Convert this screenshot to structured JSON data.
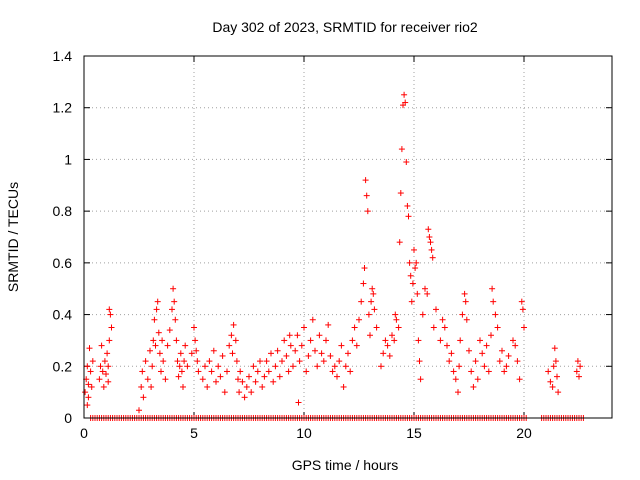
{
  "chart_data": {
    "type": "scatter",
    "title": "Day 302 of 2023, SRMTID for receiver rio2",
    "xlabel": "GPS time / hours",
    "ylabel": "SRMTID / TECUs",
    "xlim": [
      0,
      24
    ],
    "ylim": [
      0,
      1.4
    ],
    "xticks": [
      0,
      5,
      10,
      15,
      20
    ],
    "yticks": [
      0,
      0.2,
      0.4,
      0.6,
      0.8,
      1,
      1.2,
      1.4
    ],
    "xtick_labels": [
      "0",
      "5",
      "10",
      "15",
      "20"
    ],
    "ytick_labels": [
      "0",
      "0.2",
      "0.4",
      "0.6",
      "0.8",
      "1",
      "1.2",
      "1.4"
    ],
    "grid": true,
    "marker": "+",
    "color": "#ff0000",
    "series": [
      {
        "name": "rio2",
        "points": [
          [
            0.05,
            0.1
          ],
          [
            0.1,
            0.15
          ],
          [
            0.15,
            0.2
          ],
          [
            0.2,
            0.13
          ],
          [
            0.25,
            0.27
          ],
          [
            0.3,
            0.18
          ],
          [
            0.35,
            0.12
          ],
          [
            0.4,
            0.22
          ],
          [
            0.15,
            0.05
          ],
          [
            0.2,
            0.08
          ],
          [
            0.7,
            0.15
          ],
          [
            0.75,
            0.2
          ],
          [
            0.8,
            0.28
          ],
          [
            0.85,
            0.18
          ],
          [
            0.9,
            0.12
          ],
          [
            0.95,
            0.22
          ],
          [
            1.0,
            0.17
          ],
          [
            1.05,
            0.25
          ],
          [
            1.1,
            0.14
          ],
          [
            1.15,
            0.3
          ],
          [
            1.15,
            0.42
          ],
          [
            1.2,
            0.4
          ],
          [
            1.25,
            0.35
          ],
          [
            1.1,
            0.2
          ],
          [
            2.5,
            0.03
          ],
          [
            2.6,
            0.12
          ],
          [
            2.65,
            0.18
          ],
          [
            2.7,
            0.08
          ],
          [
            2.8,
            0.22
          ],
          [
            2.9,
            0.15
          ],
          [
            3.0,
            0.26
          ],
          [
            3.05,
            0.12
          ],
          [
            3.1,
            0.2
          ],
          [
            3.15,
            0.3
          ],
          [
            3.2,
            0.38
          ],
          [
            3.25,
            0.28
          ],
          [
            3.3,
            0.42
          ],
          [
            3.35,
            0.45
          ],
          [
            3.4,
            0.33
          ],
          [
            3.45,
            0.25
          ],
          [
            3.5,
            0.18
          ],
          [
            3.55,
            0.3
          ],
          [
            3.6,
            0.22
          ],
          [
            3.7,
            0.15
          ],
          [
            3.8,
            0.28
          ],
          [
            3.9,
            0.34
          ],
          [
            4.0,
            0.42
          ],
          [
            4.05,
            0.5
          ],
          [
            4.1,
            0.45
          ],
          [
            4.15,
            0.38
          ],
          [
            4.2,
            0.3
          ],
          [
            4.25,
            0.22
          ],
          [
            4.3,
            0.16
          ],
          [
            4.35,
            0.2
          ],
          [
            4.4,
            0.25
          ],
          [
            4.45,
            0.18
          ],
          [
            4.5,
            0.12
          ],
          [
            4.55,
            0.22
          ],
          [
            4.6,
            0.28
          ],
          [
            4.7,
            0.2
          ],
          [
            4.9,
            0.25
          ],
          [
            5.0,
            0.35
          ],
          [
            5.05,
            0.3
          ],
          [
            5.1,
            0.26
          ],
          [
            5.15,
            0.22
          ],
          [
            5.2,
            0.18
          ],
          [
            5.4,
            0.15
          ],
          [
            5.5,
            0.2
          ],
          [
            5.6,
            0.12
          ],
          [
            5.7,
            0.22
          ],
          [
            5.8,
            0.18
          ],
          [
            5.9,
            0.26
          ],
          [
            6.0,
            0.14
          ],
          [
            6.1,
            0.2
          ],
          [
            6.2,
            0.16
          ],
          [
            6.3,
            0.24
          ],
          [
            6.4,
            0.1
          ],
          [
            6.5,
            0.18
          ],
          [
            6.6,
            0.28
          ],
          [
            6.7,
            0.32
          ],
          [
            6.75,
            0.25
          ],
          [
            6.8,
            0.36
          ],
          [
            6.9,
            0.3
          ],
          [
            6.95,
            0.22
          ],
          [
            7.0,
            0.15
          ],
          [
            7.05,
            0.1
          ],
          [
            7.1,
            0.18
          ],
          [
            7.2,
            0.14
          ],
          [
            7.3,
            0.08
          ],
          [
            7.4,
            0.12
          ],
          [
            7.5,
            0.16
          ],
          [
            7.6,
            0.1
          ],
          [
            7.7,
            0.2
          ],
          [
            7.8,
            0.14
          ],
          [
            7.9,
            0.18
          ],
          [
            8.0,
            0.22
          ],
          [
            8.1,
            0.12
          ],
          [
            8.2,
            0.16
          ],
          [
            8.3,
            0.22
          ],
          [
            8.4,
            0.18
          ],
          [
            8.5,
            0.25
          ],
          [
            8.6,
            0.14
          ],
          [
            8.7,
            0.2
          ],
          [
            8.8,
            0.26
          ],
          [
            8.9,
            0.16
          ],
          [
            9.0,
            0.22
          ],
          [
            9.1,
            0.3
          ],
          [
            9.2,
            0.24
          ],
          [
            9.3,
            0.18
          ],
          [
            9.35,
            0.32
          ],
          [
            9.4,
            0.28
          ],
          [
            9.5,
            0.2
          ],
          [
            9.6,
            0.26
          ],
          [
            9.7,
            0.32
          ],
          [
            9.75,
            0.06
          ],
          [
            9.8,
            0.22
          ],
          [
            9.9,
            0.28
          ],
          [
            10.0,
            0.35
          ],
          [
            10.1,
            0.18
          ],
          [
            10.2,
            0.24
          ],
          [
            10.3,
            0.3
          ],
          [
            10.4,
            0.38
          ],
          [
            10.5,
            0.26
          ],
          [
            10.6,
            0.2
          ],
          [
            10.7,
            0.32
          ],
          [
            10.8,
            0.25
          ],
          [
            10.9,
            0.22
          ],
          [
            11.0,
            0.3
          ],
          [
            11.1,
            0.36
          ],
          [
            11.2,
            0.24
          ],
          [
            11.3,
            0.18
          ],
          [
            11.4,
            0.2
          ],
          [
            11.5,
            0.16
          ],
          [
            11.6,
            0.22
          ],
          [
            11.7,
            0.28
          ],
          [
            11.8,
            0.12
          ],
          [
            11.9,
            0.2
          ],
          [
            12.0,
            0.25
          ],
          [
            12.1,
            0.18
          ],
          [
            12.2,
            0.3
          ],
          [
            12.3,
            0.35
          ],
          [
            12.4,
            0.28
          ],
          [
            12.5,
            0.38
          ],
          [
            12.6,
            0.45
          ],
          [
            12.7,
            0.52
          ],
          [
            12.75,
            0.58
          ],
          [
            12.8,
            0.92
          ],
          [
            12.85,
            0.86
          ],
          [
            12.9,
            0.8
          ],
          [
            12.95,
            0.4
          ],
          [
            13.0,
            0.32
          ],
          [
            13.05,
            0.45
          ],
          [
            13.1,
            0.5
          ],
          [
            13.15,
            0.48
          ],
          [
            13.2,
            0.42
          ],
          [
            13.3,
            0.35
          ],
          [
            13.5,
            0.2
          ],
          [
            13.6,
            0.25
          ],
          [
            13.7,
            0.3
          ],
          [
            13.8,
            0.28
          ],
          [
            13.9,
            0.24
          ],
          [
            14.0,
            0.32
          ],
          [
            14.1,
            0.3
          ],
          [
            14.15,
            0.4
          ],
          [
            14.2,
            0.38
          ],
          [
            14.3,
            0.35
          ],
          [
            14.35,
            0.68
          ],
          [
            14.4,
            0.87
          ],
          [
            14.45,
            1.04
          ],
          [
            14.5,
            1.21
          ],
          [
            14.55,
            1.25
          ],
          [
            14.6,
            1.22
          ],
          [
            14.65,
            0.99
          ],
          [
            14.7,
            0.82
          ],
          [
            14.75,
            0.78
          ],
          [
            14.8,
            0.6
          ],
          [
            14.85,
            0.55
          ],
          [
            14.9,
            0.45
          ],
          [
            14.95,
            0.52
          ],
          [
            15.0,
            0.65
          ],
          [
            15.05,
            0.58
          ],
          [
            15.1,
            0.6
          ],
          [
            15.15,
            0.48
          ],
          [
            15.2,
            0.3
          ],
          [
            15.25,
            0.22
          ],
          [
            15.3,
            0.15
          ],
          [
            15.4,
            0.4
          ],
          [
            15.5,
            0.5
          ],
          [
            15.6,
            0.48
          ],
          [
            15.65,
            0.73
          ],
          [
            15.7,
            0.7
          ],
          [
            15.75,
            0.68
          ],
          [
            15.8,
            0.65
          ],
          [
            15.85,
            0.62
          ],
          [
            15.9,
            0.35
          ],
          [
            16.0,
            0.42
          ],
          [
            16.2,
            0.3
          ],
          [
            16.3,
            0.38
          ],
          [
            16.4,
            0.35
          ],
          [
            16.5,
            0.28
          ],
          [
            16.6,
            0.22
          ],
          [
            16.7,
            0.25
          ],
          [
            16.8,
            0.18
          ],
          [
            16.9,
            0.15
          ],
          [
            17.0,
            0.1
          ],
          [
            17.05,
            0.2
          ],
          [
            17.1,
            0.3
          ],
          [
            17.2,
            0.4
          ],
          [
            17.3,
            0.48
          ],
          [
            17.35,
            0.45
          ],
          [
            17.4,
            0.38
          ],
          [
            17.5,
            0.26
          ],
          [
            17.6,
            0.18
          ],
          [
            17.7,
            0.12
          ],
          [
            17.8,
            0.22
          ],
          [
            17.9,
            0.15
          ],
          [
            18.0,
            0.3
          ],
          [
            18.1,
            0.25
          ],
          [
            18.2,
            0.2
          ],
          [
            18.3,
            0.28
          ],
          [
            18.4,
            0.18
          ],
          [
            18.5,
            0.32
          ],
          [
            18.55,
            0.5
          ],
          [
            18.6,
            0.45
          ],
          [
            18.7,
            0.4
          ],
          [
            18.8,
            0.35
          ],
          [
            18.9,
            0.22
          ],
          [
            19.0,
            0.26
          ],
          [
            19.1,
            0.18
          ],
          [
            19.2,
            0.2
          ],
          [
            19.3,
            0.24
          ],
          [
            19.5,
            0.3
          ],
          [
            19.6,
            0.28
          ],
          [
            19.7,
            0.22
          ],
          [
            19.8,
            0.15
          ],
          [
            19.9,
            0.45
          ],
          [
            19.95,
            0.42
          ],
          [
            20.0,
            0.35
          ],
          [
            21.1,
            0.18
          ],
          [
            21.2,
            0.14
          ],
          [
            21.3,
            0.12
          ],
          [
            21.35,
            0.2
          ],
          [
            21.4,
            0.27
          ],
          [
            21.45,
            0.22
          ],
          [
            21.5,
            0.16
          ],
          [
            21.55,
            0.1
          ],
          [
            22.4,
            0.18
          ],
          [
            22.45,
            0.22
          ],
          [
            22.5,
            0.16
          ],
          [
            22.55,
            0.2
          ]
        ],
        "zero_value_ranges_hours": [
          [
            0.3,
            20.2
          ],
          [
            20.8,
            22.8
          ]
        ]
      }
    ]
  }
}
